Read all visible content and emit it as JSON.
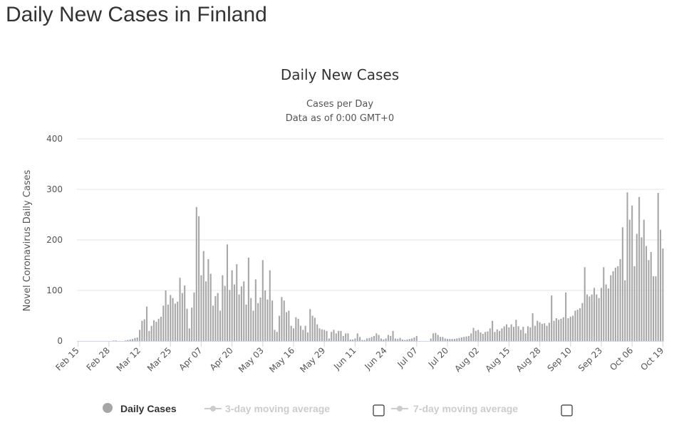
{
  "page": {
    "heading": "Daily New Cases in Finland"
  },
  "chart_data": {
    "type": "bar",
    "title": "Daily New Cases",
    "subtitle_lines": [
      "Cases per Day",
      "Data as of 0:00 GMT+0"
    ],
    "ylabel": "Novel Coronavirus Daily Cases",
    "xlabel": "",
    "ylim": [
      0,
      400
    ],
    "yticks": [
      0,
      100,
      200,
      300,
      400
    ],
    "grid": true,
    "x_ticks": [
      {
        "label": "Feb 15",
        "index": 0
      },
      {
        "label": "Feb 28",
        "index": 13
      },
      {
        "label": "Mar 12",
        "index": 26
      },
      {
        "label": "Mar 25",
        "index": 39
      },
      {
        "label": "Apr 07",
        "index": 52
      },
      {
        "label": "Apr 20",
        "index": 65
      },
      {
        "label": "May 03",
        "index": 78
      },
      {
        "label": "May 16",
        "index": 91
      },
      {
        "label": "May 29",
        "index": 104
      },
      {
        "label": "Jun 11",
        "index": 117
      },
      {
        "label": "Jun 24",
        "index": 130
      },
      {
        "label": "Jul 07",
        "index": 143
      },
      {
        "label": "Jul 20",
        "index": 156
      },
      {
        "label": "Aug 02",
        "index": 169
      },
      {
        "label": "Aug 15",
        "index": 182
      },
      {
        "label": "Aug 28",
        "index": 195
      },
      {
        "label": "Sep 10",
        "index": 208
      },
      {
        "label": "Sep 23",
        "index": 221
      },
      {
        "label": "Oct 06",
        "index": 234
      },
      {
        "label": "Oct 19",
        "index": 247
      }
    ],
    "series": [
      {
        "name": "Daily Cases",
        "color": "#a6a6a6",
        "values": [
          0,
          0,
          0,
          0,
          0,
          0,
          0,
          0,
          0,
          0,
          0,
          0,
          0,
          0,
          0,
          1,
          1,
          0,
          0,
          0,
          1,
          2,
          3,
          4,
          6,
          7,
          22,
          40,
          43,
          68,
          20,
          30,
          41,
          38,
          44,
          48,
          70,
          100,
          72,
          91,
          85,
          74,
          78,
          125,
          95,
          110,
          64,
          25,
          66,
          96,
          265,
          247,
          130,
          178,
          118,
          162,
          133,
          70,
          89,
          95,
          60,
          130,
          109,
          191,
          101,
          140,
          112,
          152,
          92,
          108,
          118,
          72,
          165,
          85,
          60,
          122,
          75,
          86,
          160,
          100,
          82,
          140,
          80,
          22,
          18,
          50,
          87,
          80,
          57,
          60,
          30,
          25,
          47,
          44,
          30,
          22,
          30,
          17,
          63,
          50,
          46,
          33,
          25,
          23,
          22,
          20,
          5,
          18,
          22,
          15,
          20,
          20,
          10,
          15,
          15,
          3,
          3,
          5,
          15,
          8,
          2,
          2,
          5,
          6,
          8,
          10,
          15,
          12,
          5,
          3,
          5,
          12,
          10,
          20,
          5,
          4,
          6,
          3,
          2,
          3,
          4,
          5,
          7,
          10,
          0,
          0,
          0,
          0,
          0,
          5,
          15,
          16,
          12,
          8,
          8,
          5,
          4,
          4,
          4,
          4,
          5,
          6,
          7,
          8,
          9,
          10,
          15,
          26,
          20,
          22,
          17,
          14,
          18,
          19,
          25,
          40,
          18,
          23,
          20,
          25,
          29,
          33,
          27,
          33,
          28,
          42,
          29,
          22,
          28,
          15,
          29,
          27,
          55,
          30,
          40,
          37,
          34,
          35,
          30,
          36,
          90,
          40,
          45,
          42,
          44,
          47,
          96,
          45,
          48,
          50,
          60,
          62,
          65,
          75,
          146,
          92,
          88,
          92,
          105,
          92,
          85,
          105,
          146,
          112,
          104,
          130,
          138,
          145,
          148,
          162,
          225,
          120,
          294,
          240,
          268,
          148,
          212,
          285,
          205,
          240,
          188,
          160,
          176,
          128,
          128,
          293,
          220,
          183
        ]
      }
    ],
    "legend": [
      {
        "label": "Daily Cases",
        "visible": true
      },
      {
        "label": "3-day moving average",
        "visible": false
      },
      {
        "label": "7-day moving average",
        "visible": false
      }
    ]
  }
}
